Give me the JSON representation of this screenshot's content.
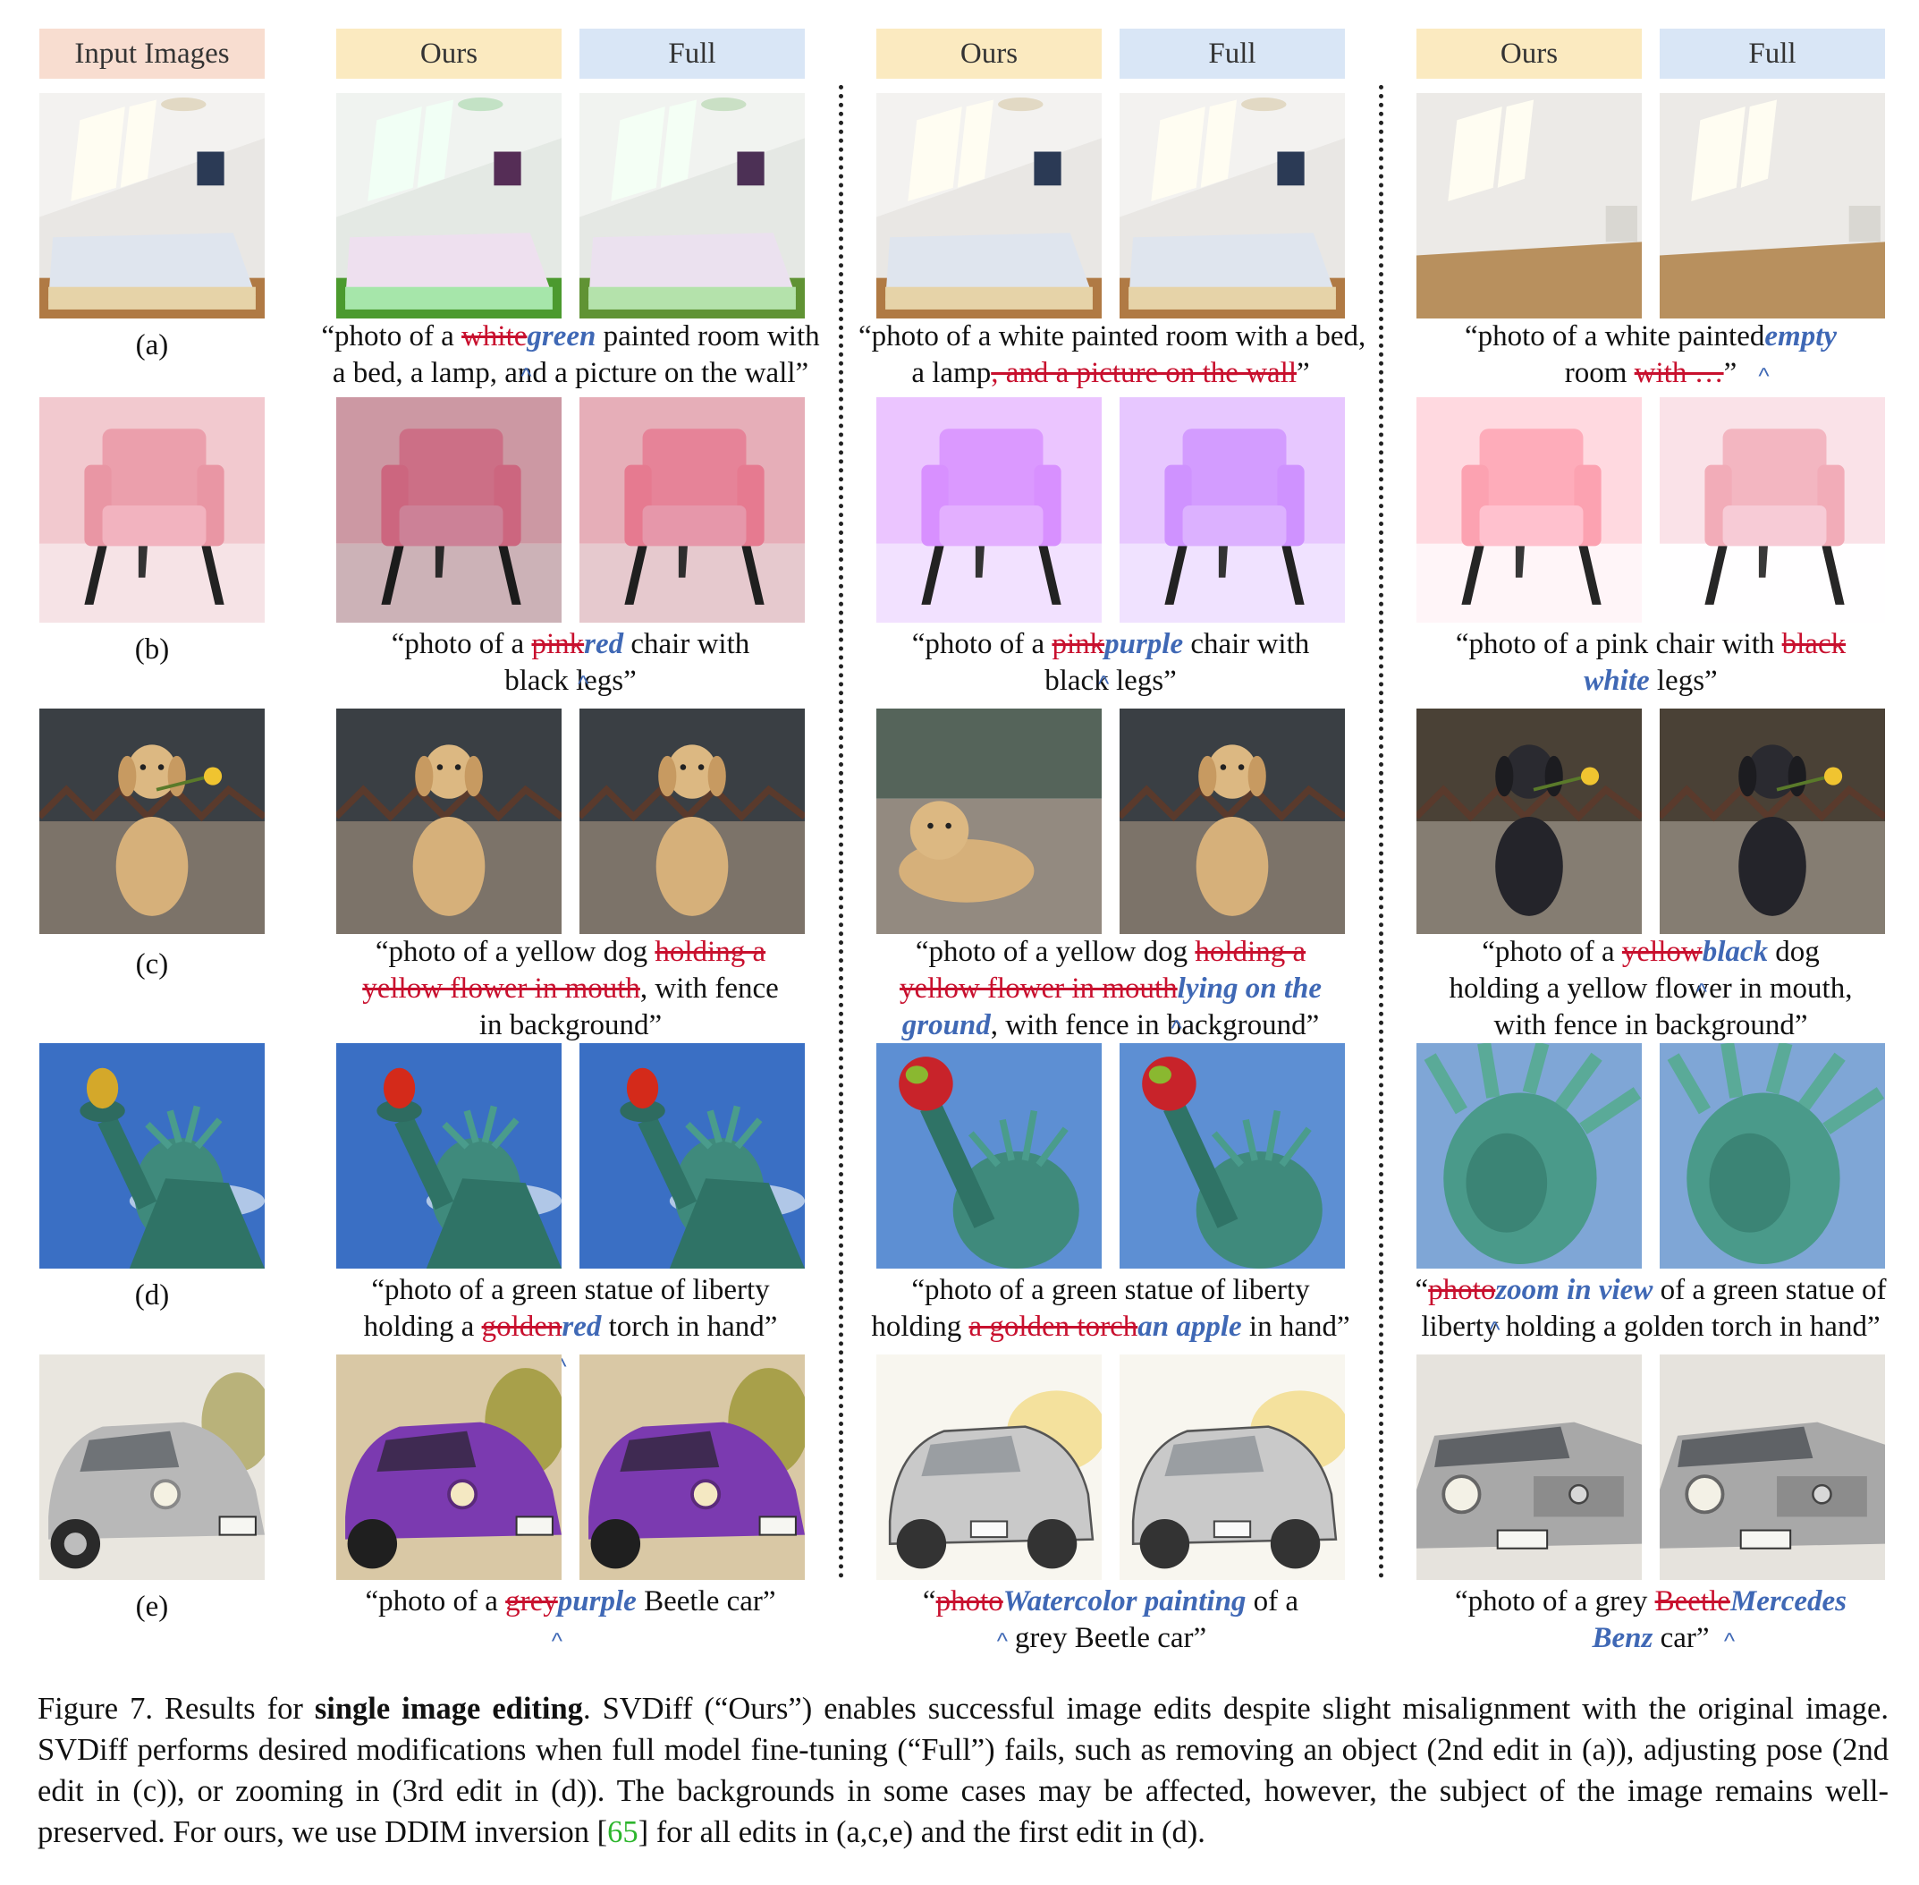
{
  "headers": {
    "input": "Input Images",
    "ours": "Ours",
    "full": "Full"
  },
  "row_labels": [
    "(a)",
    "(b)",
    "(c)",
    "(d)",
    "(e)"
  ],
  "captions": {
    "a1": {
      "l1_pre": "“photo of a ",
      "l1_del": "white",
      "l1_ins": "green",
      "l1_post": " painted room with",
      "l2": "a bed, a lamp, and a picture on the wall”"
    },
    "a2": {
      "l1": "“photo of a white painted room with a bed,",
      "l2_pre": "a lamp",
      "l2_del": ", and a picture on the wall",
      "l2_post": "”"
    },
    "a3": {
      "l1_pre": "“photo of a white painted",
      "l1_ins": "empty",
      "l2_pre": "room ",
      "l2_del": "with …",
      "l2_post": "”"
    },
    "b1": {
      "l1_pre": "“photo of a ",
      "l1_del": "pink",
      "l1_ins": "red",
      "l1_post": " chair with",
      "l2": "black legs”"
    },
    "b2": {
      "l1_pre": "“photo of a ",
      "l1_del": "pink",
      "l1_ins": "purple",
      "l1_post": " chair with",
      "l2": "black legs”"
    },
    "b3": {
      "l1_pre": "“photo of a pink chair with ",
      "l1_del": "black",
      "l2_ins": "white",
      "l2_post": " legs”"
    },
    "c1": {
      "l1_pre": "“photo of a yellow dog ",
      "l1_del": "holding a",
      "l2_del": "yellow flower in mouth",
      "l2_post": ", with fence",
      "l3": "in background”"
    },
    "c2": {
      "l1_pre": "“photo of a yellow dog ",
      "l1_del": "holding a",
      "l2_del": "yellow flower in mouth",
      "l2_ins": "lying on the",
      "l3_ins": "ground",
      "l3_post": ", with fence in background”"
    },
    "c3": {
      "l1_pre": "“photo of a ",
      "l1_del": "yellow",
      "l1_ins": "black",
      "l1_post": " dog",
      "l2": "holding a yellow flower in mouth,",
      "l3": "with fence in background”"
    },
    "d1": {
      "l1": "“photo of a green statue of liberty",
      "l2_pre": "holding a ",
      "l2_del": "golden",
      "l2_ins": "red",
      "l2_post": " torch in hand”"
    },
    "d2": {
      "l1": "“photo of a green statue of liberty",
      "l2_pre": "holding ",
      "l2_del": "a golden torch",
      "l2_ins": "an apple",
      "l2_post": " in hand”"
    },
    "d3": {
      "l1_pre": "“",
      "l1_del": "photo",
      "l1_ins": "zoom in view",
      "l1_post": " of a green statue of",
      "l2": "liberty holding a golden torch in hand”"
    },
    "e1": {
      "l1_pre": "“photo of a ",
      "l1_del": "grey",
      "l1_ins": "purple",
      "l1_post": " Beetle car”"
    },
    "e2": {
      "l1_pre": "“",
      "l1_del": "photo",
      "l1_ins": "Watercolor painting",
      "l1_post": " of a",
      "l2": "grey Beetle car”"
    },
    "e3": {
      "l1_pre": "“photo of a grey ",
      "l1_del": "Beetle",
      "l1_ins": "Mercedes",
      "l2_ins": "Benz",
      "l2_post": " car”"
    }
  },
  "figure_caption": {
    "label": "Figure 7. Results for ",
    "bold": "single image editing",
    "body": ". SVDiff (“Ours”) enables successful image edits despite slight misalignment with the original image. SVDiff performs desired modifications when full model fine-tuning (“Full”) fails, such as removing an object (2nd edit in (a)), adjusting pose (2nd edit in (c)), or zooming in (3rd edit in (d)). The backgrounds in some cases may be affected, however, the subject of the image remains well-preserved. For ours, we use DDIM inversion [",
    "ref": "65",
    "tail": "] for all edits in (a,c,e) and the first edit in (d)."
  },
  "colors": {
    "deleted": "#c8102e",
    "inserted": "#3f68b5",
    "reference": "#2cb52c"
  }
}
